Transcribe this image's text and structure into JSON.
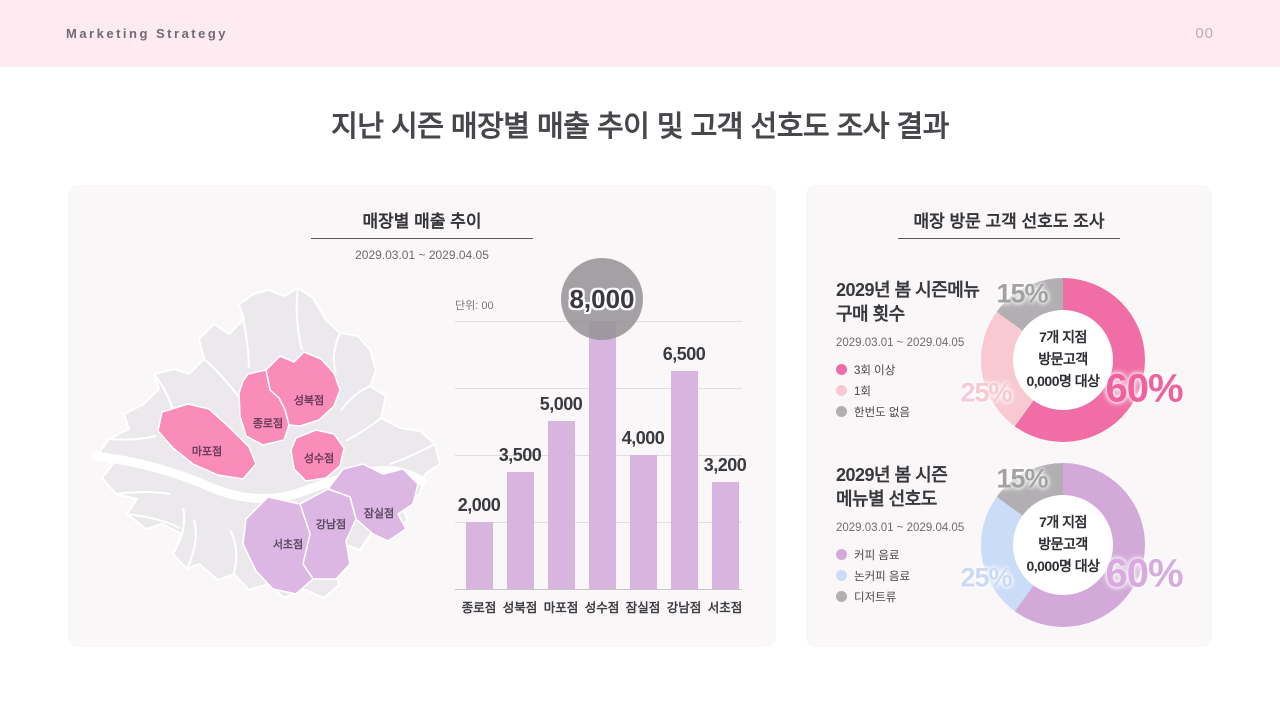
{
  "header": {
    "brand": "Marketing Strategy",
    "page_number": "00",
    "bg_color": "#fdebf1"
  },
  "slide_title": "지난 시즌 매장별 매출 추이 및 고객 선호도 조사 결과",
  "left_panel": {
    "map_stores": [
      {
        "name": "성북점",
        "group": "pink"
      },
      {
        "name": "종로점",
        "group": "pink"
      },
      {
        "name": "마포점",
        "group": "pink"
      },
      {
        "name": "성수점",
        "group": "pink"
      },
      {
        "name": "잠실점",
        "group": "purple"
      },
      {
        "name": "강남점",
        "group": "purple"
      },
      {
        "name": "서초점",
        "group": "purple"
      }
    ],
    "map_colors": {
      "pink": "#fa8cba",
      "purple": "#ddb7e3",
      "base": "#ebe9ec"
    }
  },
  "right_panel": {
    "title": "매장 방문 고객 선호도 조사",
    "sections": [
      {
        "heading_line1": "2029년 봄 시즌메뉴",
        "heading_line2": "구매 횟수",
        "date_range": "2029.03.01 ~ 2029.04.05",
        "center_line1": "7개 지점",
        "center_line2": "방문고객",
        "center_line3": "0,000명 대상",
        "pct_label_colors": [
          "#f0619f",
          "#f7c9d5",
          "#a3a1a4"
        ]
      },
      {
        "heading_line1": "2029년 봄 시즌",
        "heading_line2": "메뉴별 선호도",
        "date_range": "2029.03.01 ~ 2029.04.05",
        "center_line1": "7개 지점",
        "center_line2": "방문고객",
        "center_line3": "0,000명 대상",
        "pct_label_colors": [
          "#d9aade",
          "#cbd9f5",
          "#a3a1a4"
        ]
      }
    ]
  },
  "chart_data": [
    {
      "type": "bar",
      "title": "매장별 매출 추이",
      "subtitle": "2029.03.01 ~ 2029.04.05",
      "unit_label": "단위: 00",
      "categories": [
        "종로점",
        "성북점",
        "마포점",
        "성수점",
        "잠실점",
        "강남점",
        "서초점"
      ],
      "values": [
        2000,
        3500,
        5000,
        8000,
        4000,
        6500,
        3200
      ],
      "value_labels": [
        "2,000",
        "3,500",
        "5,000",
        "8,000",
        "4,000",
        "6,500",
        "3,200"
      ],
      "highlight_index": 3,
      "bar_color": "#d8b5de",
      "highlight_circle_color": "#97949a",
      "ylim": [
        0,
        8560
      ],
      "gridline_values": [
        2000,
        4000,
        6000,
        8000
      ],
      "grid": true,
      "legend_position": "none"
    },
    {
      "type": "pie",
      "title": "2029년 봄 시즌메뉴 구매 횟수",
      "subtitle": "2029.03.01 ~ 2029.04.05",
      "labels": [
        "3회 이상",
        "1회",
        "한번도 없음"
      ],
      "values": [
        60,
        25,
        15
      ],
      "pct_labels": [
        "60%",
        "25%",
        "15%"
      ],
      "colors": [
        "#f06ea5",
        "#f9c9d3",
        "#b1afb1"
      ],
      "center_text": "7개 지점 방문고객 0,000명 대상",
      "legend_position": "left"
    },
    {
      "type": "pie",
      "title": "2029년 봄 시즌 메뉴별 선호도",
      "subtitle": "2029.03.01 ~ 2029.04.05",
      "labels": [
        "커피 음료",
        "논커피 음료",
        "디저트류"
      ],
      "values": [
        60,
        25,
        15
      ],
      "pct_labels": [
        "60%",
        "25%",
        "15%"
      ],
      "colors": [
        "#d2a9d8",
        "#cbdcf8",
        "#b1afb1"
      ],
      "center_text": "7개 지점 방문고객 0,000명 대상",
      "legend_position": "left"
    }
  ]
}
